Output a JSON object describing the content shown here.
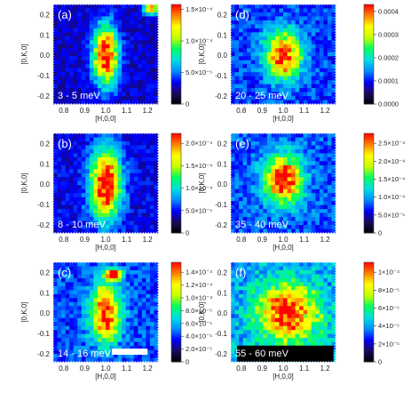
{
  "chart_data": [
    {
      "type": "heatmap",
      "panel_label": "(a)",
      "energy_label": "3 - 5 meV",
      "xlabel": "[H,0,0]",
      "ylabel": "[0,K,0]",
      "x_ticks": [
        "0.8",
        "0.9",
        "1.0",
        "1.1",
        "1.2"
      ],
      "y_ticks": [
        "0.2",
        "0.1",
        "0.0",
        "-0.1",
        "-0.2"
      ],
      "xlim": [
        0.75,
        1.25
      ],
      "ylim": [
        -0.24,
        0.25
      ],
      "colorbar": {
        "ticks": [
          "1.5×10⁻⁴",
          "1.0×10⁻⁴",
          "5.0×10⁻⁵",
          "0"
        ],
        "range": [
          0,
          0.00016
        ]
      },
      "peak": {
        "center_h": 1.0,
        "center_k": 0.0,
        "width_h": 0.04,
        "width_k": 0.1,
        "peak_value": 0.00015
      },
      "background": 3e-05,
      "extra_spots": [
        {
          "h": 1.22,
          "k": 0.23,
          "value": 0.00012
        }
      ],
      "mask": null
    },
    {
      "type": "heatmap",
      "panel_label": "(b)",
      "energy_label": "8 - 10 meV",
      "xlabel": "[H,0,0]",
      "ylabel": "[0,K,0]",
      "x_ticks": [
        "0.8",
        "0.9",
        "1.0",
        "1.1",
        "1.2"
      ],
      "y_ticks": [
        "0.2",
        "0.1",
        "0.0",
        "-0.1",
        "-0.2"
      ],
      "xlim": [
        0.75,
        1.25
      ],
      "ylim": [
        -0.24,
        0.25
      ],
      "colorbar": {
        "ticks": [
          "2.0×10⁻⁴",
          "1.5×10⁻⁴",
          "1.0×10⁻⁴",
          "5.0×10⁻⁵",
          "0"
        ],
        "range": [
          0,
          0.00024
        ]
      },
      "peak": {
        "center_h": 1.0,
        "center_k": 0.0,
        "width_h": 0.05,
        "width_k": 0.12,
        "peak_value": 0.00022
      },
      "background": 5e-05,
      "extra_spots": [],
      "mask": null
    },
    {
      "type": "heatmap",
      "panel_label": "(c)",
      "energy_label": "14 - 16 meV",
      "xlabel": "[H,0,0]",
      "ylabel": "[0,K,0]",
      "x_ticks": [
        "0.8",
        "0.9",
        "1.0",
        "1.1",
        "1.2"
      ],
      "y_ticks": [
        "0.2",
        "0.1",
        "0.0",
        "-0.1",
        "-0.2"
      ],
      "xlim": [
        0.75,
        1.25
      ],
      "ylim": [
        -0.24,
        0.25
      ],
      "colorbar": {
        "ticks": [
          "1.4×10⁻⁴",
          "1.2×10⁻⁴",
          "1.0×10⁻⁴",
          "8.0×10⁻⁵",
          "6.0×10⁻⁵",
          "4.0×10⁻⁵",
          "2.0×10⁻⁵",
          "0"
        ],
        "range": [
          0,
          0.000145
        ]
      },
      "peak": {
        "center_h": 1.0,
        "center_k": 0.0,
        "width_h": 0.05,
        "width_k": 0.1,
        "peak_value": 0.00011
      },
      "background": 4e-05,
      "extra_spots": [
        {
          "h": 1.04,
          "k": 0.19,
          "value": 0.00013
        }
      ],
      "mask": {
        "h_from": 1.03,
        "h_to": 1.2,
        "k_from": -0.205,
        "k_to": -0.175
      }
    },
    {
      "type": "heatmap",
      "panel_label": "(d)",
      "energy_label": "20 - 25 meV",
      "xlabel": "[H,0,0]",
      "ylabel": "[0,K,0]",
      "x_ticks": [
        "0.8",
        "0.9",
        "1.0",
        "1.1",
        "1.2"
      ],
      "y_ticks": [
        "0.2",
        "0.1",
        "0.0",
        "-0.1",
        "-0.2"
      ],
      "xlim": [
        0.75,
        1.25
      ],
      "ylim": [
        -0.24,
        0.25
      ],
      "colorbar": {
        "ticks": [
          "0.0004",
          "0.0003",
          "0.0002",
          "0.0001",
          "0.0000"
        ],
        "range": [
          0,
          0.00045
        ]
      },
      "peak": {
        "center_h": 1.0,
        "center_k": 0.0,
        "width_h": 0.06,
        "width_k": 0.08,
        "peak_value": 0.00035
      },
      "background": 0.00012,
      "extra_spots": [],
      "mask": null
    },
    {
      "type": "heatmap",
      "panel_label": "(e)",
      "energy_label": "35 - 40 meV",
      "xlabel": "[H,0,0]",
      "ylabel": "[0,K,0]",
      "x_ticks": [
        "0.8",
        "0.9",
        "1.0",
        "1.1",
        "1.2"
      ],
      "y_ticks": [
        "0.2",
        "0.1",
        "0.0",
        "-0.1",
        "-0.2"
      ],
      "xlim": [
        0.75,
        1.25
      ],
      "ylim": [
        -0.24,
        0.25
      ],
      "colorbar": {
        "ticks": [
          "2.5×10⁻⁴",
          "2.0×10⁻⁴",
          "1.5×10⁻⁴",
          "1.0×10⁻⁴",
          "5.0×10⁻⁵",
          "0"
        ],
        "range": [
          0,
          0.00028
        ]
      },
      "peak": {
        "center_h": 1.0,
        "center_k": 0.02,
        "width_h": 0.06,
        "width_k": 0.08,
        "peak_value": 0.00024
      },
      "background": 8e-05,
      "extra_spots": [],
      "mask": null
    },
    {
      "type": "heatmap",
      "panel_label": "(f)",
      "energy_label": "55 - 60 meV",
      "xlabel": "[H,0,0]",
      "ylabel": "[0,K,0]",
      "x_ticks": [
        "0.8",
        "0.9",
        "1.0",
        "1.1",
        "1.2"
      ],
      "y_ticks": [
        "0.2",
        "0.1",
        "0.0",
        "-0.1",
        "-0.2"
      ],
      "xlim": [
        0.75,
        1.25
      ],
      "ylim": [
        -0.24,
        0.25
      ],
      "colorbar": {
        "ticks": [
          "1×10⁻⁴",
          "8×10⁻⁵",
          "6×10⁻⁵",
          "4×10⁻⁵",
          "2×10⁻⁵",
          "0"
        ],
        "range": [
          0,
          0.00011
        ]
      },
      "peak": {
        "center_h": 1.02,
        "center_k": 0.0,
        "width_h": 0.1,
        "width_k": 0.1,
        "peak_value": 7.5e-05
      },
      "background": 4e-05,
      "extra_spots": [],
      "mask": {
        "h_from": 0.78,
        "h_to": 1.24,
        "k_from": -0.24,
        "k_to": -0.16
      }
    }
  ],
  "colormap": [
    "#000000",
    "#1a0a60",
    "#0000ff",
    "#0090ff",
    "#00e0e0",
    "#00ff60",
    "#c8ff00",
    "#ffff00",
    "#ff8000",
    "#ff0000"
  ]
}
